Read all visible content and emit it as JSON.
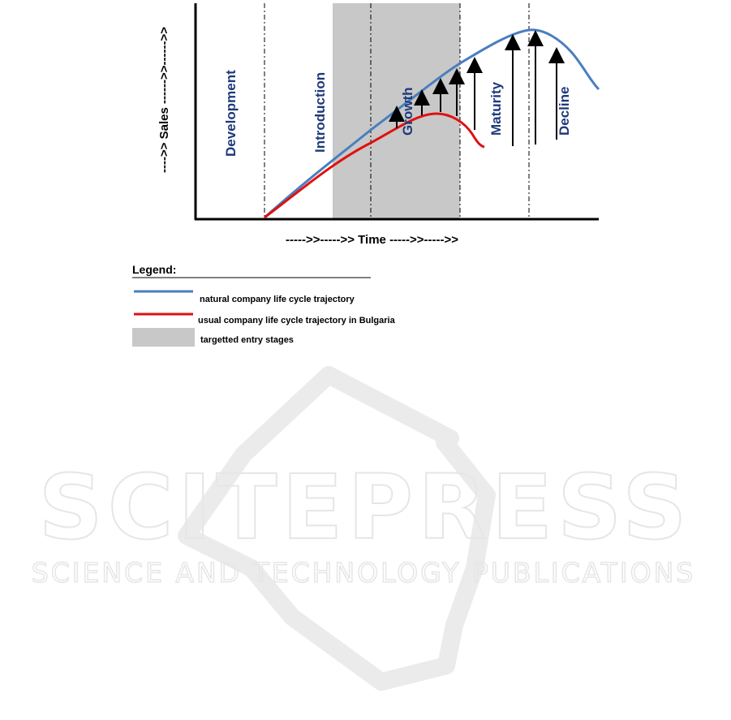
{
  "diagram": {
    "stages": [
      "Development",
      "Introduction",
      "Growth",
      "Maturity",
      "Decline"
    ],
    "y_axis_label": "---->>  Sales  ------>>------>>",
    "x_axis_label": "----->>----->>  Time  ----->>----->>",
    "curves": {
      "natural": {
        "color": "#4a7ebf"
      },
      "bulgaria": {
        "color": "#e01010"
      }
    },
    "shade_color": "#c8c8c8"
  },
  "legend": {
    "title": "Legend:",
    "items": [
      {
        "label": "natural company life cycle trajectory",
        "type": "line",
        "color": "#4a7ebf"
      },
      {
        "label": "usual company life cycle trajectory in Bulgaria",
        "type": "line",
        "color": "#e01010"
      },
      {
        "label": "targetted entry stages",
        "type": "box",
        "color": "#c8c8c8"
      }
    ]
  },
  "watermark": {
    "title": "SCITEPRESS",
    "subtitle": "SCIENCE AND TECHNOLOGY PUBLICATIONS"
  }
}
